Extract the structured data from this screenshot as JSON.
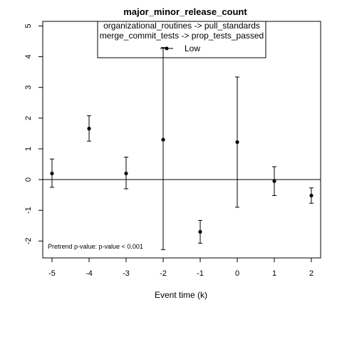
{
  "chart_data": {
    "type": "scatter",
    "title": "major_minor_release_count",
    "xlabel": "Event time (k)",
    "ylabel": "",
    "xlim": [
      -5.25,
      2.25
    ],
    "ylim": [
      -2.55,
      5.15
    ],
    "x_ticks": [
      -5,
      -4,
      -3,
      -2,
      -1,
      0,
      1,
      2
    ],
    "y_ticks": [
      -2,
      -1,
      0,
      1,
      2,
      3,
      4,
      5
    ],
    "reference_line_y": 0,
    "legend": {
      "placement": "top-center",
      "lines": [
        "organizational_routines -> pull_standards",
        "merge_commit_tests -> prop_tests_passed"
      ],
      "entries": [
        {
          "label": "Low",
          "marker": "point-line"
        }
      ]
    },
    "series": [
      {
        "name": "Low",
        "x": [
          -5,
          -4,
          -3,
          -2,
          -1,
          0,
          1,
          2
        ],
        "y": [
          0.2,
          1.66,
          0.2,
          1.3,
          -1.7,
          1.22,
          -0.05,
          -0.52
        ],
        "lower": [
          -0.25,
          1.25,
          -0.3,
          -2.28,
          -2.07,
          -0.9,
          -0.52,
          -0.77
        ],
        "upper": [
          0.67,
          2.08,
          0.73,
          4.3,
          -1.33,
          3.34,
          0.42,
          -0.27
        ]
      }
    ],
    "annotation": "Pretrend p-value: p-value < 0.001",
    "grid": false
  }
}
